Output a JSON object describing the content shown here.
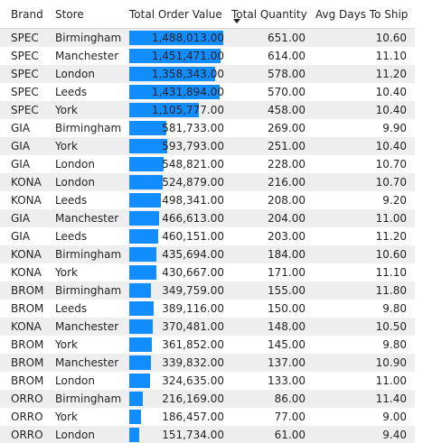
{
  "columns": {
    "brand": "Brand",
    "store": "Store",
    "total_order_value": "Total Order Value",
    "total_quantity": "Total Quantity",
    "avg_days_to_ship": "Avg Days To Ship"
  },
  "sort": {
    "column": "Total Quantity",
    "direction": "descending",
    "icon": "sort-descending-icon"
  },
  "bar_color": "#118dff",
  "bar_max_value": 1488013,
  "rows": [
    {
      "brand": "SPEC",
      "store": "Birmingham",
      "value": "1,488,013.00",
      "value_num": 1488013,
      "qty": "651.00",
      "days": "10.60"
    },
    {
      "brand": "SPEC",
      "store": "Manchester",
      "value": "1,451,471.00",
      "value_num": 1451471,
      "qty": "614.00",
      "days": "11.10"
    },
    {
      "brand": "SPEC",
      "store": "London",
      "value": "1,358,343.00",
      "value_num": 1358343,
      "qty": "578.00",
      "days": "11.20"
    },
    {
      "brand": "SPEC",
      "store": "Leeds",
      "value": "1,431,894.00",
      "value_num": 1431894,
      "qty": "570.00",
      "days": "10.40"
    },
    {
      "brand": "SPEC",
      "store": "York",
      "value": "1,105,777.00",
      "value_num": 1105777,
      "qty": "458.00",
      "days": "10.40"
    },
    {
      "brand": "GIA",
      "store": "Birmingham",
      "value": "581,733.00",
      "value_num": 581733,
      "qty": "269.00",
      "days": "9.90"
    },
    {
      "brand": "GIA",
      "store": "York",
      "value": "593,793.00",
      "value_num": 593793,
      "qty": "251.00",
      "days": "10.40"
    },
    {
      "brand": "GIA",
      "store": "London",
      "value": "548,821.00",
      "value_num": 548821,
      "qty": "228.00",
      "days": "10.70"
    },
    {
      "brand": "KONA",
      "store": "London",
      "value": "524,879.00",
      "value_num": 524879,
      "qty": "216.00",
      "days": "10.70"
    },
    {
      "brand": "KONA",
      "store": "Leeds",
      "value": "498,341.00",
      "value_num": 498341,
      "qty": "208.00",
      "days": "9.20"
    },
    {
      "brand": "GIA",
      "store": "Manchester",
      "value": "466,613.00",
      "value_num": 466613,
      "qty": "204.00",
      "days": "11.00"
    },
    {
      "brand": "GIA",
      "store": "Leeds",
      "value": "460,151.00",
      "value_num": 460151,
      "qty": "203.00",
      "days": "11.20"
    },
    {
      "brand": "KONA",
      "store": "Birmingham",
      "value": "435,694.00",
      "value_num": 435694,
      "qty": "184.00",
      "days": "10.60"
    },
    {
      "brand": "KONA",
      "store": "York",
      "value": "430,667.00",
      "value_num": 430667,
      "qty": "171.00",
      "days": "11.10"
    },
    {
      "brand": "BROM",
      "store": "Birmingham",
      "value": "349,759.00",
      "value_num": 349759,
      "qty": "155.00",
      "days": "11.80"
    },
    {
      "brand": "BROM",
      "store": "Leeds",
      "value": "389,116.00",
      "value_num": 389116,
      "qty": "150.00",
      "days": "9.80"
    },
    {
      "brand": "KONA",
      "store": "Manchester",
      "value": "370,481.00",
      "value_num": 370481,
      "qty": "148.00",
      "days": "10.50"
    },
    {
      "brand": "BROM",
      "store": "York",
      "value": "361,852.00",
      "value_num": 361852,
      "qty": "145.00",
      "days": "9.80"
    },
    {
      "brand": "BROM",
      "store": "Manchester",
      "value": "339,832.00",
      "value_num": 339832,
      "qty": "137.00",
      "days": "10.90"
    },
    {
      "brand": "BROM",
      "store": "London",
      "value": "324,635.00",
      "value_num": 324635,
      "qty": "133.00",
      "days": "11.00"
    },
    {
      "brand": "ORRO",
      "store": "Birmingham",
      "value": "216,169.00",
      "value_num": 216169,
      "qty": "86.00",
      "days": "11.40"
    },
    {
      "brand": "ORRO",
      "store": "York",
      "value": "186,457.00",
      "value_num": 186457,
      "qty": "77.00",
      "days": "9.00"
    },
    {
      "brand": "ORRO",
      "store": "London",
      "value": "151,734.00",
      "value_num": 151734,
      "qty": "61.00",
      "days": "9.40"
    }
  ]
}
